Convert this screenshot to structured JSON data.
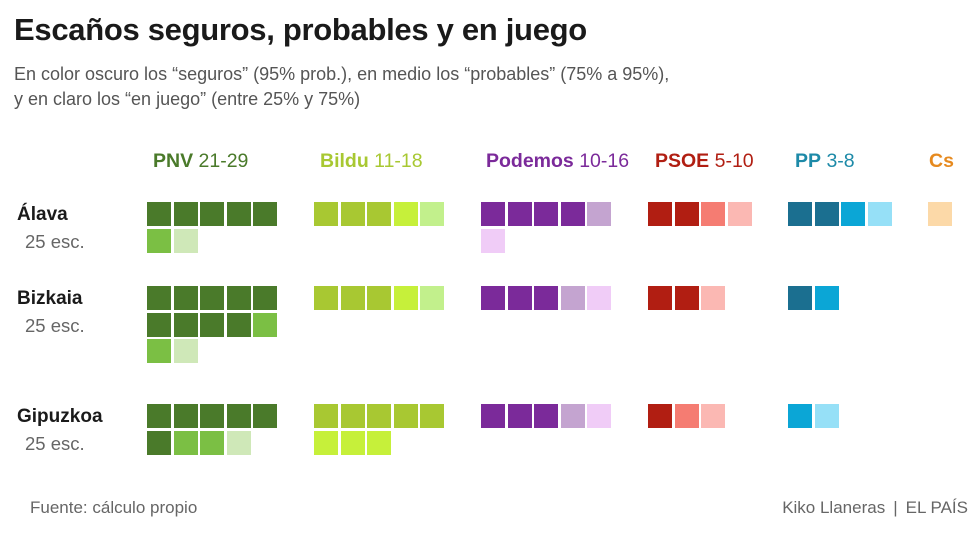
{
  "title": "Escaños seguros, probables y en juego",
  "subtitle_line1": "En color oscuro los “seguros” (95% prob.), en medio los “probables” (75% a 95%),",
  "subtitle_line2": "y en claro los “en juego” (entre 25% y 75%)",
  "footer": {
    "source": "Fuente: cálculo propio",
    "author": "Kiko Llaneras",
    "separator": "|",
    "outlet": "EL PAÍS"
  },
  "chart_data": {
    "type": "waffle",
    "title": "Escaños seguros, probables y en juego",
    "subtitle": "En color oscuro los “seguros” (95% prob.), en medio los “probables” (75% a 95%), y en claro los “en juego” (entre 25% y 75%)",
    "categories_legend": [
      "seguros",
      "probables",
      "en juego"
    ],
    "parties": [
      {
        "name": "PNV",
        "range": "21-29",
        "color": "#4a7a2a",
        "shades": [
          "#4a7a2a",
          "#7bbf44",
          "#cfe8b8"
        ]
      },
      {
        "name": "Bildu",
        "range": "11-18",
        "color": "#a8c832",
        "shades": [
          "#a8c832",
          "#c6f03a",
          "#c2f08c"
        ]
      },
      {
        "name": "Podemos",
        "range": "10-16",
        "color": "#7b2a9a",
        "shades": [
          "#7b2a9a",
          "#c4a4d0",
          "#f0ccf7"
        ]
      },
      {
        "name": "PSOE",
        "range": "5-10",
        "color": "#b11e12",
        "shades": [
          "#b11e12",
          "#f57c72",
          "#fbb8b3"
        ]
      },
      {
        "name": "PP",
        "range": "3-8",
        "color": "#1d8aa8",
        "shades": [
          "#1b6f90",
          "#0ba6d6",
          "#96e0f7"
        ]
      },
      {
        "name": "Cs",
        "range": "",
        "color": "#e68a1f",
        "shades": [
          "#e68a1f",
          "#f5c57f",
          "#fcd9a8"
        ]
      }
    ],
    "regions": [
      {
        "name": "Álava",
        "seats_label": "25 esc.",
        "seats": {
          "PNV": {
            "seguros": 5,
            "probables": 1,
            "en juego": 1
          },
          "Bildu": {
            "seguros": 3,
            "probables": 1,
            "en juego": 1
          },
          "Podemos": {
            "seguros": 4,
            "probables": 1,
            "en juego": 1
          },
          "PSOE": {
            "seguros": 2,
            "probables": 1,
            "en juego": 1
          },
          "PP": {
            "seguros": 2,
            "probables": 1,
            "en juego": 1
          },
          "Cs": {
            "seguros": 0,
            "probables": 0,
            "en juego": 1
          }
        }
      },
      {
        "name": "Bizkaia",
        "seats_label": "25 esc.",
        "seats": {
          "PNV": {
            "seguros": 9,
            "probables": 2,
            "en juego": 1
          },
          "Bildu": {
            "seguros": 3,
            "probables": 1,
            "en juego": 1
          },
          "Podemos": {
            "seguros": 3,
            "probables": 1,
            "en juego": 1
          },
          "PSOE": {
            "seguros": 2,
            "probables": 0,
            "en juego": 1
          },
          "PP": {
            "seguros": 1,
            "probables": 1,
            "en juego": 0
          },
          "Cs": {
            "seguros": 0,
            "probables": 0,
            "en juego": 0
          }
        }
      },
      {
        "name": "Gipuzkoa",
        "seats_label": "25 esc.",
        "seats": {
          "PNV": {
            "seguros": 6,
            "probables": 2,
            "en juego": 1
          },
          "Bildu": {
            "seguros": 5,
            "probables": 3,
            "en juego": 0
          },
          "Podemos": {
            "seguros": 3,
            "probables": 1,
            "en juego": 1
          },
          "PSOE": {
            "seguros": 1,
            "probables": 1,
            "en juego": 1
          },
          "PP": {
            "seguros": 0,
            "probables": 1,
            "en juego": 1
          },
          "Cs": {
            "seguros": 0,
            "probables": 0,
            "en juego": 0
          }
        }
      }
    ]
  },
  "cells": {
    "Álava": {
      "PNV": [
        "#4a7a2a",
        "#4a7a2a",
        "#4a7a2a",
        "#4a7a2a",
        "#4a7a2a",
        "#7bbf44",
        "#cfe8b8"
      ],
      "Bildu": [
        "#a8c832",
        "#a8c832",
        "#a8c832",
        "#c6f03a",
        "#c2f08c"
      ],
      "Podemos": [
        "#7b2a9a",
        "#7b2a9a",
        "#7b2a9a",
        "#7b2a9a",
        "#c4a4d0",
        "#f0ccf7"
      ],
      "PSOE": [
        "#b11e12",
        "#b11e12",
        "#f57c72",
        "#fbb8b3"
      ],
      "PP": [
        "#1b6f90",
        "#1b6f90",
        "#0ba6d6",
        "#96e0f7"
      ],
      "Cs": [
        "#fcd9a8"
      ]
    },
    "Bizkaia": {
      "PNV": [
        "#4a7a2a",
        "#4a7a2a",
        "#4a7a2a",
        "#4a7a2a",
        "#4a7a2a",
        "#4a7a2a",
        "#4a7a2a",
        "#4a7a2a",
        "#4a7a2a",
        "#7bbf44",
        "#7bbf44",
        "#cfe8b8"
      ],
      "Bildu": [
        "#a8c832",
        "#a8c832",
        "#a8c832",
        "#c6f03a",
        "#c2f08c"
      ],
      "Podemos": [
        "#7b2a9a",
        "#7b2a9a",
        "#7b2a9a",
        "#c4a4d0",
        "#f0ccf7"
      ],
      "PSOE": [
        "#b11e12",
        "#b11e12",
        "#fbb8b3"
      ],
      "PP": [
        "#1b6f90",
        "#0ba6d6"
      ],
      "Cs": []
    },
    "Gipuzkoa": {
      "PNV": [
        "#4a7a2a",
        "#4a7a2a",
        "#4a7a2a",
        "#4a7a2a",
        "#4a7a2a",
        "#4a7a2a",
        "#7bbf44",
        "#7bbf44",
        "#cfe8b8"
      ],
      "Bildu": [
        "#a8c832",
        "#a8c832",
        "#a8c832",
        "#a8c832",
        "#a8c832",
        "#c6f03a",
        "#c6f03a",
        "#c6f03a"
      ],
      "Podemos": [
        "#7b2a9a",
        "#7b2a9a",
        "#7b2a9a",
        "#c4a4d0",
        "#f0ccf7"
      ],
      "PSOE": [
        "#b11e12",
        "#f57c72",
        "#fbb8b3"
      ],
      "PP": [
        "#0ba6d6",
        "#96e0f7"
      ],
      "Cs": []
    }
  }
}
